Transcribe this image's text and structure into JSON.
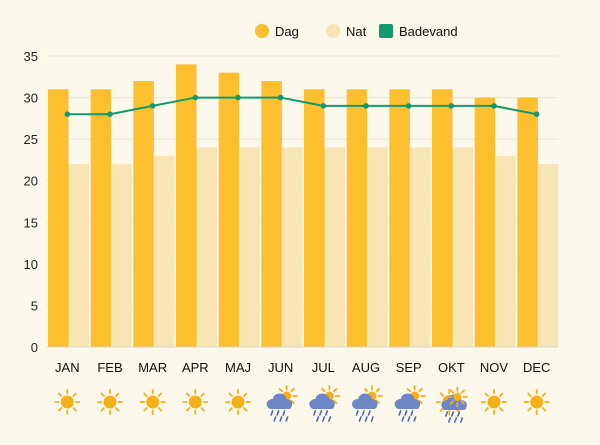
{
  "chart_data": {
    "type": "bar",
    "categories": [
      "JAN",
      "FEB",
      "MAR",
      "APR",
      "MAJ",
      "JUN",
      "JUL",
      "AUG",
      "SEP",
      "OKT",
      "NOV",
      "DEC"
    ],
    "series": [
      {
        "name": "Dag",
        "kind": "bar",
        "color": "#fbbf2f",
        "values": [
          31,
          31,
          32,
          34,
          33,
          32,
          31,
          31,
          31,
          31,
          30,
          30
        ]
      },
      {
        "name": "Nat",
        "kind": "bar",
        "color": "#f8e5b6",
        "values": [
          22,
          22,
          23,
          24,
          24,
          24,
          24,
          24,
          24,
          24,
          23,
          22
        ]
      },
      {
        "name": "Badevand",
        "kind": "line",
        "color": "#129a6c",
        "values": [
          28,
          28,
          29,
          30,
          30,
          30,
          29,
          29,
          29,
          29,
          29,
          28
        ]
      }
    ],
    "yticks": [
      0,
      5,
      10,
      15,
      20,
      25,
      30,
      35
    ],
    "ylim": [
      0,
      35
    ],
    "legend_position": "top-right",
    "weather_icons": [
      "sun-icon",
      "sun-icon",
      "sun-icon",
      "sun-icon",
      "sun-icon",
      "rain-icon",
      "rain-icon",
      "rain-icon",
      "rain-icon",
      "mixed-icon",
      "sun-icon",
      "sun-icon"
    ]
  },
  "colors": {
    "background": "#fdf8ec",
    "grid": "#ece6d6",
    "sun": "#f5b01e",
    "cloud": "#6d86c6",
    "rain": "#4a67b8"
  }
}
